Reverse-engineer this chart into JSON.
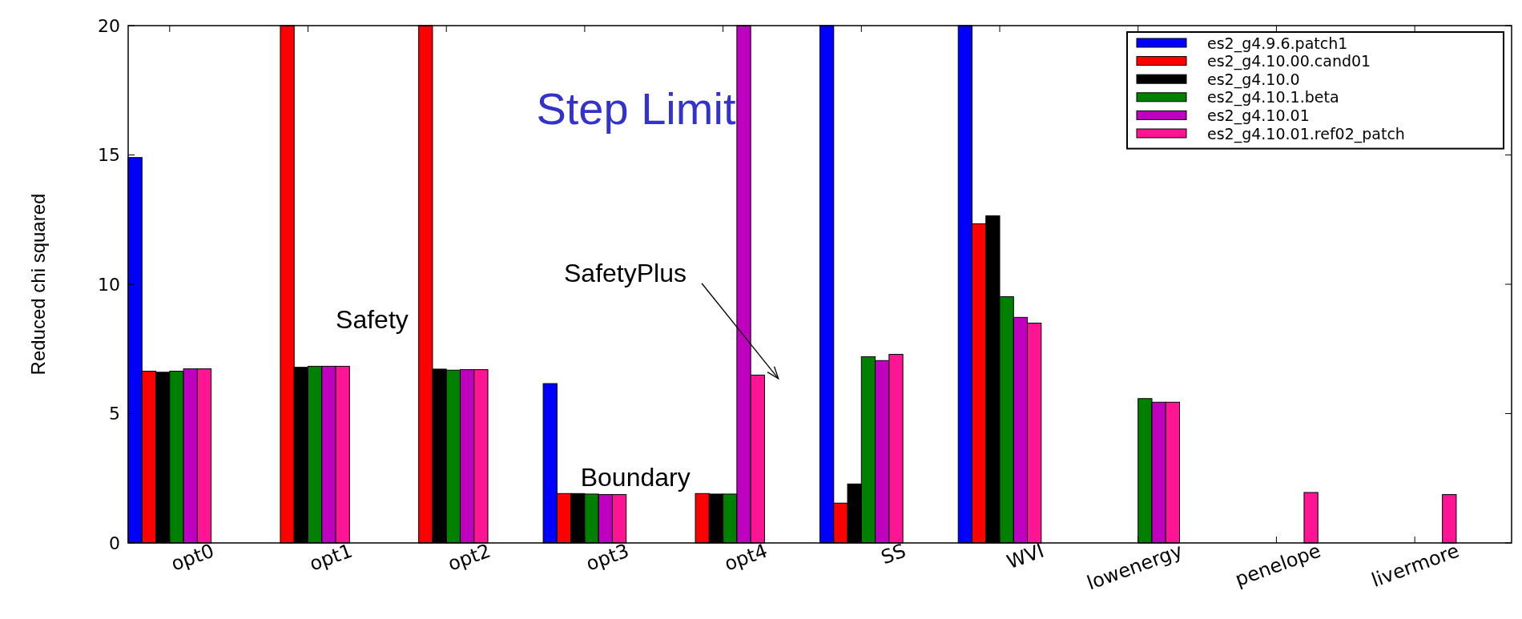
{
  "chart_data": {
    "type": "bar",
    "ylabel": "Reduced chi squared",
    "categories": [
      "opt0",
      "opt1",
      "opt2",
      "opt3",
      "opt4",
      "SS",
      "WVI",
      "lowenergy",
      "penelope",
      "livermore"
    ],
    "series": [
      {
        "name": "es2_g4.9.6.patch1",
        "color": "#0000ff",
        "values": [
          14.9,
          null,
          null,
          6.16,
          null,
          20,
          20,
          null,
          null,
          null
        ]
      },
      {
        "name": "es2_g4.10.00.cand01",
        "color": "#ff0000",
        "values": [
          6.64,
          20,
          20,
          1.91,
          1.91,
          1.54,
          12.34,
          null,
          null,
          null
        ]
      },
      {
        "name": "es2_g4.10.0",
        "color": "#000000",
        "values": [
          6.6,
          6.79,
          6.72,
          1.91,
          1.89,
          2.28,
          12.65,
          null,
          null,
          null
        ]
      },
      {
        "name": "es2_g4.10.1.beta",
        "color": "#008000",
        "values": [
          6.64,
          6.83,
          6.68,
          1.89,
          1.89,
          7.2,
          9.52,
          5.58,
          null,
          null
        ]
      },
      {
        "name": "es2_g4.10.01",
        "color": "#bf00bf",
        "values": [
          6.73,
          6.83,
          6.7,
          1.87,
          20,
          7.05,
          8.72,
          5.44,
          null,
          null
        ]
      },
      {
        "name": "es2_g4.10.01.ref02_patch",
        "color": "#ff1493",
        "values": [
          6.73,
          6.83,
          6.7,
          1.87,
          6.49,
          7.29,
          8.5,
          5.44,
          1.95,
          1.87
        ]
      }
    ],
    "ylim": [
      0,
      20
    ],
    "yticks": [
      0,
      5,
      10,
      15,
      20
    ],
    "grid": false,
    "legend": "top right",
    "annotations": [
      "Step Limit",
      "Safety",
      "SafetyPlus",
      "Boundary"
    ]
  }
}
